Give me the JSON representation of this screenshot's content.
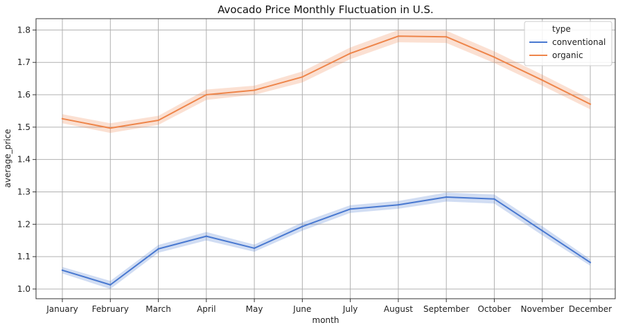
{
  "chart_data": {
    "type": "line",
    "title": "Avocado Price Monthly Fluctuation in U.S.",
    "xlabel": "month",
    "ylabel": "average_price",
    "categories": [
      "January",
      "February",
      "March",
      "April",
      "May",
      "June",
      "July",
      "August",
      "September",
      "October",
      "November",
      "December"
    ],
    "ylim": [
      0.97,
      1.835
    ],
    "yticks": [
      1.0,
      1.1,
      1.2,
      1.3,
      1.4,
      1.5,
      1.6,
      1.7,
      1.8
    ],
    "grid": true,
    "legend": {
      "title": "type",
      "position": "top-right"
    },
    "series": [
      {
        "name": "conventional",
        "color": "#4878d0",
        "values": [
          1.058,
          1.013,
          1.124,
          1.163,
          1.126,
          1.193,
          1.247,
          1.26,
          1.284,
          1.278,
          1.18,
          1.082
        ],
        "ci_lower": [
          1.048,
          1.0,
          1.112,
          1.15,
          1.115,
          1.18,
          1.235,
          1.248,
          1.27,
          1.264,
          1.166,
          1.072
        ],
        "ci_upper": [
          1.068,
          1.025,
          1.136,
          1.176,
          1.137,
          1.206,
          1.259,
          1.272,
          1.298,
          1.292,
          1.194,
          1.092
        ]
      },
      {
        "name": "organic",
        "color": "#ee854a",
        "values": [
          1.526,
          1.497,
          1.521,
          1.6,
          1.614,
          1.655,
          1.728,
          1.781,
          1.779,
          1.716,
          1.645,
          1.571
        ],
        "ci_lower": [
          1.512,
          1.482,
          1.507,
          1.584,
          1.6,
          1.638,
          1.71,
          1.762,
          1.76,
          1.698,
          1.628,
          1.555
        ],
        "ci_upper": [
          1.54,
          1.512,
          1.535,
          1.616,
          1.628,
          1.672,
          1.746,
          1.8,
          1.798,
          1.734,
          1.662,
          1.587
        ]
      }
    ]
  }
}
